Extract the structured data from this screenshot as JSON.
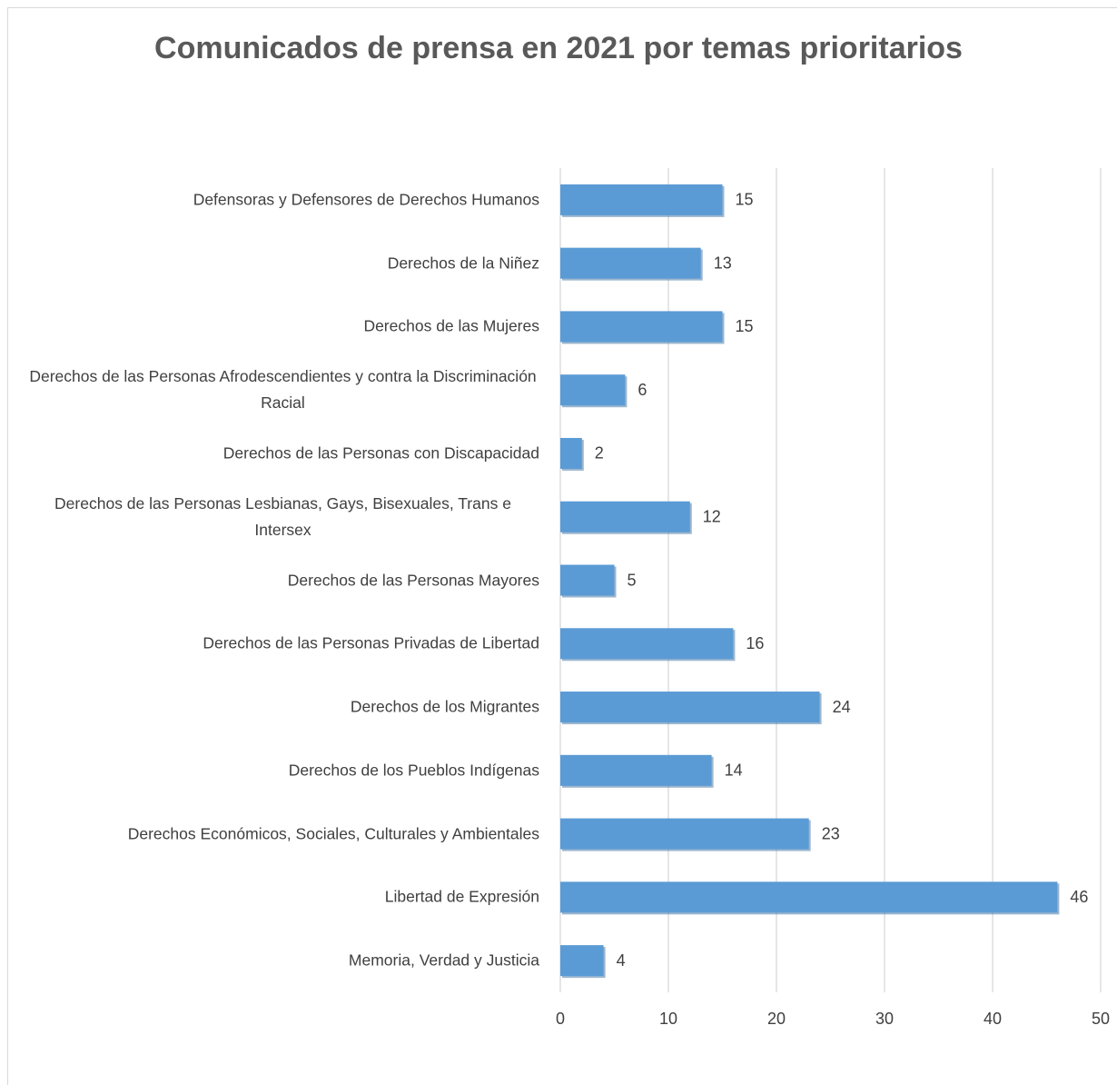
{
  "chart_data": {
    "type": "bar",
    "orientation": "horizontal",
    "title": "Comunicados de prensa en 2021 por temas prioritarios",
    "categories": [
      "Defensoras y Defensores de Derechos Humanos",
      "Derechos de la Niñez",
      "Derechos de las Mujeres",
      "Derechos de las Personas  Afrodescendientes y contra la Discriminación Racial",
      "Derechos de las Personas con Discapacidad",
      "Derechos de las Personas Lesbianas, Gays, Bisexuales, Trans e Intersex",
      "Derechos de las Personas Mayores",
      "Derechos de las Personas Privadas de Libertad",
      "Derechos de los Migrantes",
      "Derechos de los Pueblos Indígenas",
      "Derechos Económicos, Sociales, Culturales y Ambientales",
      "Libertad de Expresión",
      "Memoria, Verdad y Justicia"
    ],
    "values": [
      15,
      13,
      15,
      6,
      2,
      12,
      5,
      16,
      24,
      14,
      23,
      46,
      4
    ],
    "color": "#5b9bd5",
    "xlim": [
      0,
      50
    ],
    "xticks": [
      0,
      10,
      20,
      30,
      40,
      50
    ],
    "grid": true
  }
}
